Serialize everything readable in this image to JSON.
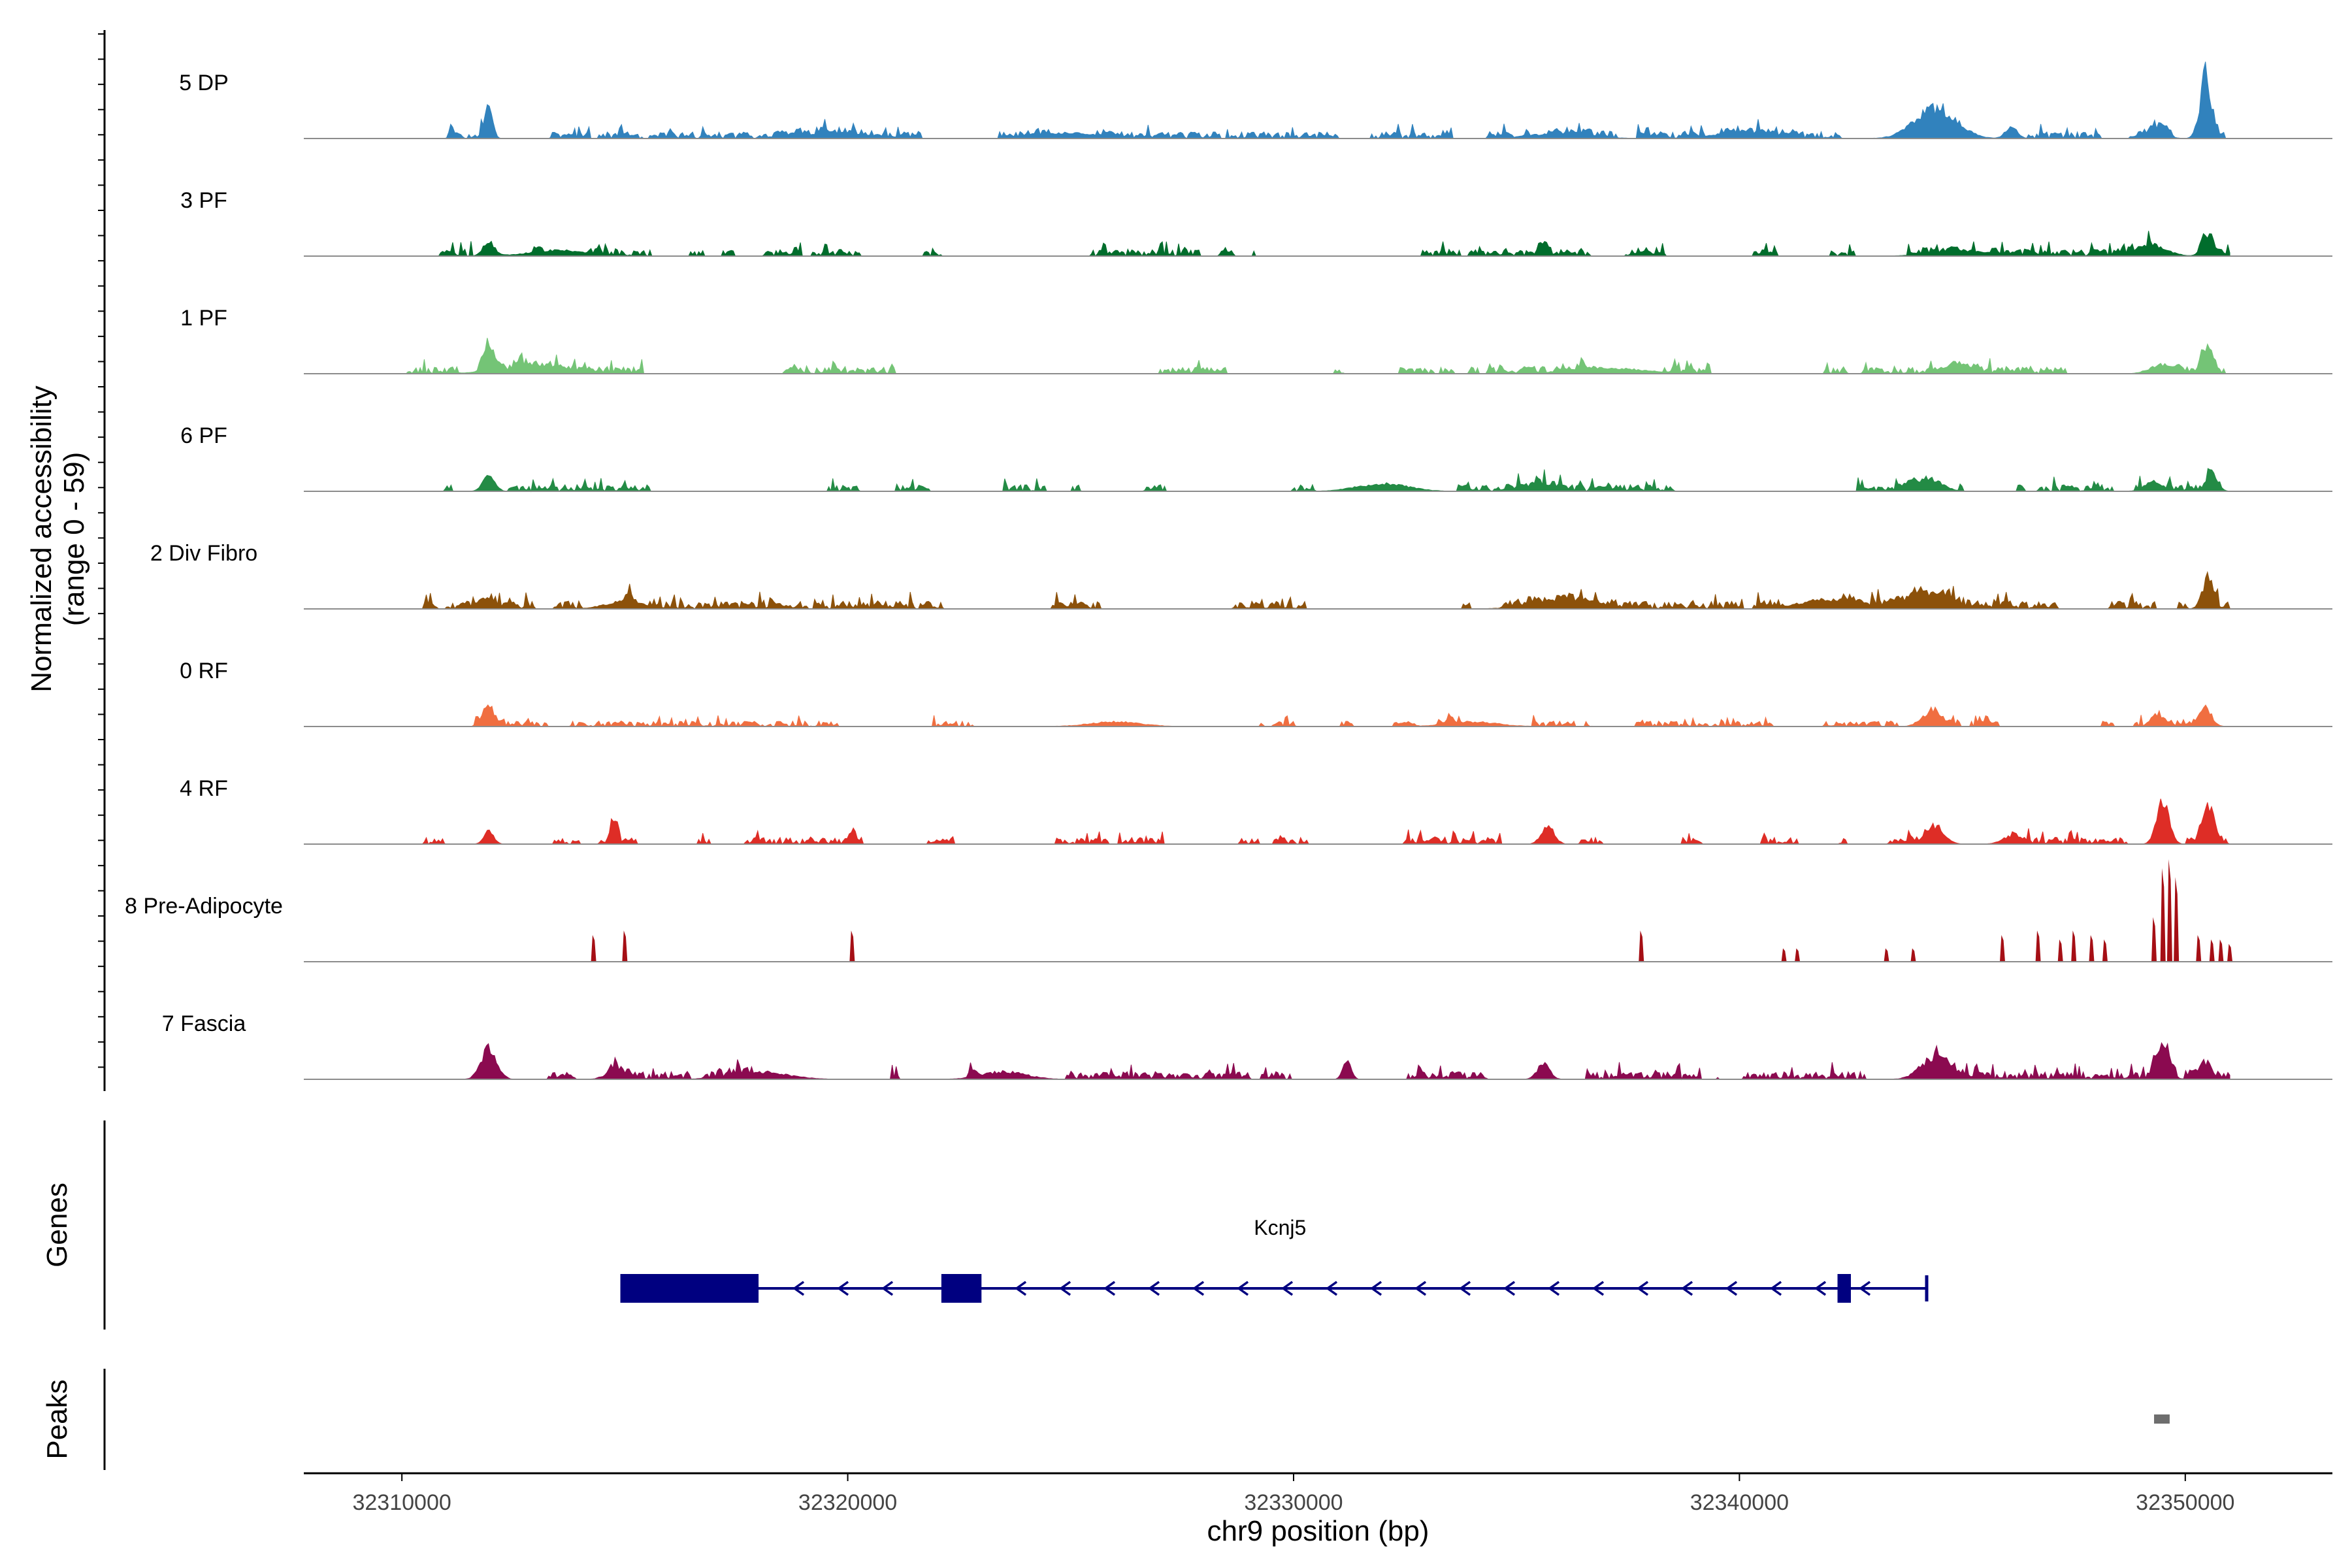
{
  "chart_data": {
    "type": "area",
    "title": "",
    "ylabel_line1": "Normalized accessibility",
    "ylabel_line2": "(range 0 - 59)",
    "ylim": [
      0,
      59
    ],
    "xlabel": "chr9 position (bp)",
    "xlim": [
      32307800,
      32353300
    ],
    "x_ticks": [
      32310000,
      32320000,
      32330000,
      32340000,
      32350000
    ],
    "x_tick_labels": [
      "32310000",
      "32320000",
      "32330000",
      "32340000",
      "32350000"
    ],
    "tracks": [
      {
        "name": "5 DP",
        "color": "#3182bd",
        "seed": 11,
        "noise": 3,
        "density": 0.55,
        "range": [
          32310000,
          32351000
        ],
        "peaks": [
          [
            32311950,
            16,
            120
          ],
          [
            32344400,
            16,
            650
          ],
          [
            32346100,
            7,
            180
          ],
          [
            32349400,
            7,
            250
          ],
          [
            32350450,
            30,
            180
          ],
          [
            32319500,
            3,
            900
          ],
          [
            32325000,
            3,
            900
          ],
          [
            32336000,
            3,
            900
          ],
          [
            32340000,
            3,
            900
          ]
        ]
      },
      {
        "name": "3 PF",
        "color": "#006d2c",
        "seed": 23,
        "noise": 3,
        "density": 0.5,
        "range": [
          32310000,
          32351000
        ],
        "peaks": [
          [
            32311950,
            8,
            180
          ],
          [
            32335600,
            7,
            130
          ],
          [
            32349200,
            6,
            500
          ],
          [
            32350500,
            10,
            180
          ],
          [
            32313500,
            3,
            900
          ],
          [
            32345000,
            3,
            900
          ]
        ]
      },
      {
        "name": "1 PF",
        "color": "#74c476",
        "seed": 37,
        "noise": 3,
        "density": 0.6,
        "range": [
          32310000,
          32351000
        ],
        "peaks": [
          [
            32311950,
            12,
            170
          ],
          [
            32344900,
            6,
            450
          ],
          [
            32350500,
            12,
            180
          ],
          [
            32349500,
            5,
            400
          ],
          [
            32313000,
            3,
            1200
          ],
          [
            32337000,
            3,
            1200
          ]
        ]
      },
      {
        "name": "6 PF",
        "color": "#238b45",
        "seed": 41,
        "noise": 3,
        "density": 0.45,
        "range": [
          32310700,
          32351000
        ],
        "peaks": [
          [
            32311950,
            10,
            180
          ],
          [
            32344200,
            7,
            450
          ],
          [
            32350600,
            8,
            180
          ],
          [
            32332000,
            4,
            800
          ],
          [
            32335500,
            4,
            500
          ],
          [
            32349300,
            5,
            300
          ]
        ]
      },
      {
        "name": "2 Div Fibro",
        "color": "#8c510a",
        "seed": 53,
        "noise": 3.5,
        "density": 0.6,
        "range": [
          32310000,
          32351000
        ],
        "peaks": [
          [
            32311950,
            6,
            180
          ],
          [
            32344200,
            8,
            700
          ],
          [
            32350500,
            14,
            180
          ],
          [
            32336000,
            5,
            900
          ],
          [
            32342000,
            5,
            900
          ],
          [
            32315000,
            4,
            600
          ]
        ]
      },
      {
        "name": "0 RF",
        "color": "#f06e40",
        "seed": 67,
        "noise": 2.5,
        "density": 0.55,
        "range": [
          32310300,
          32351000
        ],
        "peaks": [
          [
            32311950,
            11,
            180
          ],
          [
            32344300,
            8,
            300
          ],
          [
            32349400,
            6,
            180
          ],
          [
            32350450,
            10,
            200
          ],
          [
            32326000,
            2.5,
            800
          ],
          [
            32334000,
            2.5,
            800
          ]
        ]
      },
      {
        "name": "4 RF",
        "color": "#de2d26",
        "seed": 79,
        "noise": 3,
        "density": 0.55,
        "range": [
          32310000,
          32351000
        ],
        "peaks": [
          [
            32311950,
            8,
            150
          ],
          [
            32314750,
            11,
            120
          ],
          [
            32320100,
            6,
            120
          ],
          [
            32335700,
            10,
            200
          ],
          [
            32344400,
            10,
            280
          ],
          [
            32349500,
            22,
            200
          ],
          [
            32350500,
            20,
            180
          ],
          [
            32346100,
            4,
            300
          ]
        ]
      },
      {
        "name": "8 Pre-Adipocyte",
        "color": "#a50f15",
        "seed": 91,
        "noise": 0,
        "density": 0,
        "range": [
          32310000,
          32351000
        ],
        "spikes": [
          [
            32314300,
            12
          ],
          [
            32315000,
            14
          ],
          [
            32320100,
            14
          ],
          [
            32337800,
            14
          ],
          [
            32341000,
            6
          ],
          [
            32341300,
            6
          ],
          [
            32343300,
            6
          ],
          [
            32343900,
            6
          ],
          [
            32345900,
            12
          ],
          [
            32346700,
            14
          ],
          [
            32347200,
            10
          ],
          [
            32347500,
            14
          ],
          [
            32347900,
            12
          ],
          [
            32348200,
            10
          ],
          [
            32349300,
            20
          ],
          [
            32349500,
            42
          ],
          [
            32349650,
            46
          ],
          [
            32349800,
            38
          ],
          [
            32350300,
            12
          ],
          [
            32350600,
            10
          ],
          [
            32350800,
            10
          ],
          [
            32351000,
            8
          ]
        ]
      },
      {
        "name": "7 Fascia",
        "color": "#8b0a50",
        "seed": 103,
        "noise": 3.5,
        "density": 0.6,
        "range": [
          32310500,
          32351000
        ],
        "peaks": [
          [
            32311950,
            16,
            250
          ],
          [
            32331200,
            10,
            130
          ],
          [
            32335600,
            8,
            200
          ],
          [
            32344400,
            12,
            450
          ],
          [
            32349500,
            18,
            200
          ],
          [
            32350400,
            6,
            250
          ],
          [
            32314800,
            5,
            300
          ],
          [
            32318000,
            4,
            900
          ],
          [
            32323500,
            4,
            700
          ]
        ]
      }
    ],
    "genes_label": "Genes",
    "gene": {
      "name": "Kcnj5",
      "strand": "-",
      "start": 32314900,
      "end": 32344200,
      "exons": [
        [
          32314900,
          32318000
        ],
        [
          32322100,
          32323000
        ],
        [
          32342200,
          32342500
        ]
      ],
      "color": "#000080"
    },
    "peaks_label": "Peaks",
    "peak_regions": [
      [
        32349300,
        32349650
      ]
    ],
    "peak_color": "#6e6e6e"
  }
}
